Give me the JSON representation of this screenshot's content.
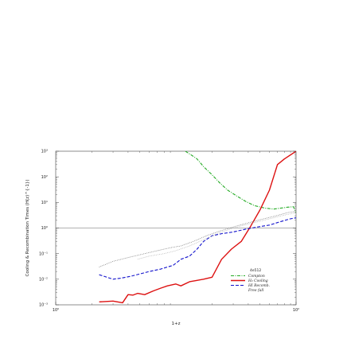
{
  "chart_data": {
    "type": "line",
    "title": "",
    "xlabel": "1+z",
    "ylabel": "Cooling & Recombination Times (H(z)^{-1})",
    "xscale": "log",
    "yscale": "log",
    "xlim": [
      1,
      100
    ],
    "ylim": [
      0.001,
      1000
    ],
    "x_ticks": [
      {
        "value": 1,
        "label": "10^0"
      },
      {
        "value": 100,
        "label": "10^2"
      }
    ],
    "y_ticks": [
      {
        "value": 1000,
        "label": "10^3"
      },
      {
        "value": 100,
        "label": "10^2"
      },
      {
        "value": 10,
        "label": "10^1"
      },
      {
        "value": 1,
        "label": "10^0"
      },
      {
        "value": 0.1,
        "label": "10^-1"
      },
      {
        "value": 0.01,
        "label": "10^-2"
      },
      {
        "value": 0.001,
        "label": "10^-3"
      }
    ],
    "reference_line_y": 1,
    "legend_title": "4e512",
    "legend_position": "bottom-right",
    "series": [
      {
        "name": "Compton",
        "color": "#22aa22",
        "style": "dashdot",
        "x": [
          12,
          13.5,
          15,
          17,
          20,
          23,
          27,
          32,
          38,
          45,
          55,
          65,
          75,
          85,
          95,
          100
        ],
        "y": [
          1000,
          700,
          500,
          250,
          120,
          60,
          30,
          18,
          11,
          7.5,
          6,
          5.5,
          6,
          6.5,
          6.8,
          4
        ]
      },
      {
        "name": "H₂ Cooling",
        "color": "#dd1111",
        "style": "solid",
        "x": [
          2.3,
          3.0,
          3.6,
          4.0,
          4.4,
          4.8,
          5.5,
          6.5,
          7.5,
          8.5,
          10,
          11,
          13,
          15,
          17,
          20,
          24,
          29,
          35,
          42,
          50,
          60,
          70,
          80,
          100
        ],
        "y": [
          0.0013,
          0.0014,
          0.0012,
          0.0025,
          0.0024,
          0.0028,
          0.0025,
          0.0035,
          0.0045,
          0.0055,
          0.0065,
          0.0055,
          0.008,
          0.009,
          0.01,
          0.012,
          0.06,
          0.15,
          0.3,
          1.2,
          5,
          30,
          300,
          500,
          1000
        ]
      },
      {
        "name": "HI Recomb.",
        "color": "#1111cc",
        "style": "dashed",
        "x": [
          2.3,
          3.0,
          3.5,
          4.2,
          5.0,
          6.0,
          7.5,
          9.5,
          11,
          13,
          15,
          17,
          20,
          24,
          30,
          38,
          48,
          60,
          75,
          90,
          100
        ],
        "y": [
          0.015,
          0.01,
          0.011,
          0.013,
          0.016,
          0.02,
          0.025,
          0.035,
          0.06,
          0.08,
          0.15,
          0.3,
          0.5,
          0.6,
          0.7,
          0.9,
          1.1,
          1.3,
          1.8,
          2.3,
          2.5
        ]
      },
      {
        "name": "Free fall",
        "color": "#666666",
        "style": "dotted",
        "x": [
          2.3,
          3.0,
          4.0,
          5.5,
          7,
          9,
          11,
          14,
          18,
          23,
          30,
          40,
          52,
          68,
          85,
          100
        ],
        "y": [
          0.03,
          0.05,
          0.07,
          0.1,
          0.13,
          0.17,
          0.2,
          0.3,
          0.5,
          0.75,
          1.1,
          1.6,
          2.2,
          3,
          4,
          4.5
        ]
      },
      {
        "name": "",
        "color": "#aaaaaa",
        "style": "dotted",
        "x": [
          4.8,
          6,
          8,
          10,
          13,
          17,
          22,
          30,
          42,
          58,
          80,
          100
        ],
        "y": [
          0.06,
          0.08,
          0.1,
          0.13,
          0.2,
          0.35,
          0.6,
          1.0,
          1.5,
          2.2,
          3.2,
          4
        ]
      }
    ]
  }
}
